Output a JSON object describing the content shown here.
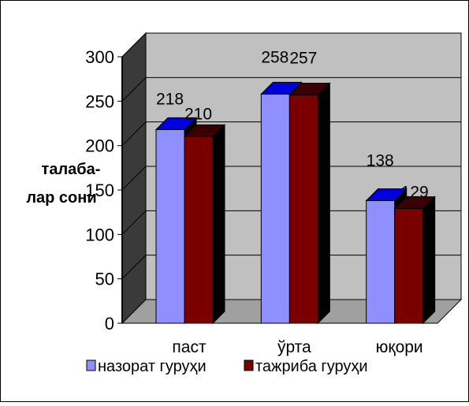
{
  "chart_data": {
    "type": "bar",
    "style": "3d-clustered-column",
    "categories": [
      "паст",
      "ўрта",
      "юқори"
    ],
    "series": [
      {
        "name": "назорат гуруҳи",
        "values": [
          218,
          258,
          138
        ],
        "color": "#8f8fff"
      },
      {
        "name": "тажриба гуруҳи",
        "values": [
          210,
          257,
          129
        ],
        "color": "#7a0000"
      }
    ],
    "ylabel_line1": "талаба-",
    "ylabel_line2": "лар сони",
    "ylim": [
      0,
      300
    ],
    "yticks": [
      0,
      50,
      100,
      150,
      200,
      250,
      300
    ],
    "grid": true,
    "legend": "bottom",
    "colors": {
      "wall": "#c0c0c0",
      "floor": "#a0a0a0",
      "side_wall": "#3a3a3a",
      "series1_top": "#0000dd",
      "series2_top": "#3a0000"
    }
  }
}
